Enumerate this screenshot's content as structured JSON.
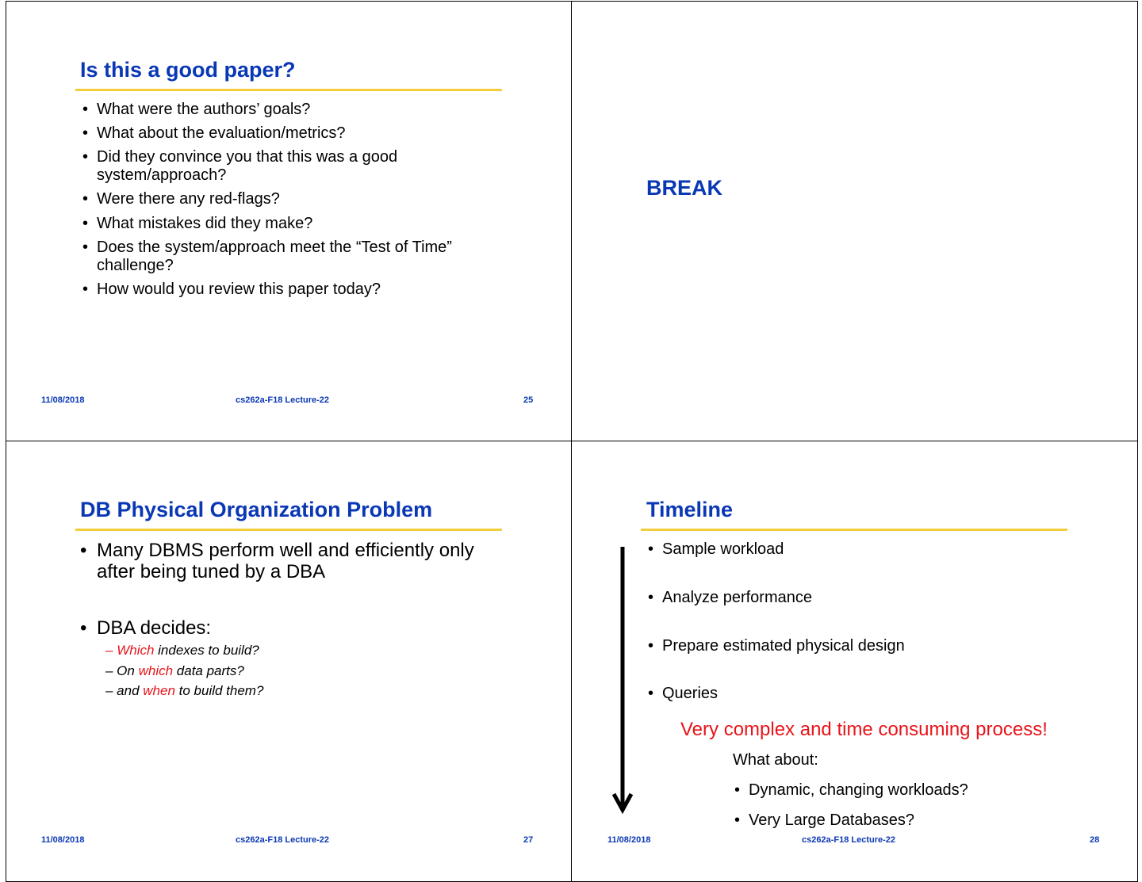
{
  "slides": [
    {
      "title": "Is this a good paper?",
      "bullets": [
        "What were the authors’ goals?",
        "What about the evaluation/metrics?",
        "Did they convince you that this was a good",
        "system/approach?",
        "Were there any red-flags?",
        "What mistakes did they make?",
        "Does the system/approach meet the “Test of Time”",
        "challenge?",
        "How would you review this paper today?"
      ],
      "footer": {
        "date": "11/08/2018",
        "course": "cs262a-F18 Lecture-22",
        "page": "25"
      }
    },
    {
      "title": "BREAK"
    },
    {
      "title": "DB Physical Organization Problem",
      "bullets": [
        "Many DBMS perform well and efficiently only",
        "after being tuned by a DBA",
        "DBA decides:"
      ],
      "sub": [
        [
          "– ",
          "Which",
          " indexes to build?"
        ],
        [
          "– On ",
          "which",
          " data parts?"
        ],
        [
          "– and ",
          "when",
          " to build them?"
        ]
      ],
      "footer": {
        "date": "11/08/2018",
        "course": "cs262a-F18 Lecture-22",
        "page": "27"
      }
    },
    {
      "title": "Timeline",
      "bullets": [
        "Sample workload",
        "Analyze performance",
        "Prepare estimated physical design",
        "Queries"
      ],
      "emphasis": "Very complex and time consuming process!",
      "what_about": "What about:",
      "sub": [
        "Dynamic, changing workloads?",
        "Very Large Databases?"
      ],
      "footer": {
        "date": "11/08/2018",
        "course": "cs262a-F18 Lecture-22",
        "page": "28"
      }
    }
  ],
  "bullet_char": "•"
}
